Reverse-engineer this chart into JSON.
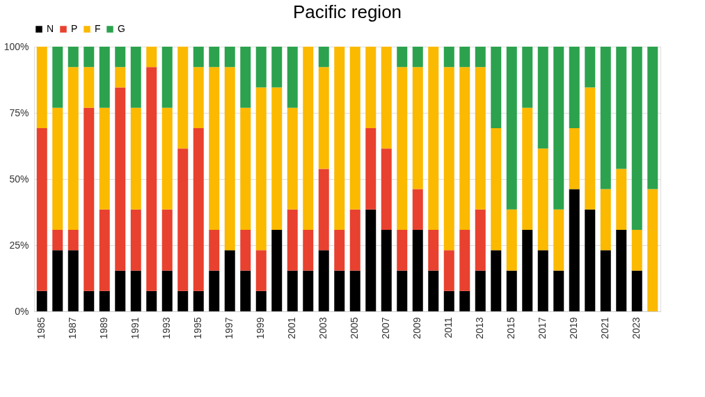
{
  "chart_data": {
    "type": "bar",
    "title": "Pacific region",
    "stacked": true,
    "categories": [
      "1985",
      null,
      "1987",
      null,
      "1989",
      null,
      "1991",
      null,
      "1993",
      null,
      "1995",
      null,
      "1997",
      null,
      "1999",
      null,
      "2001",
      null,
      "2003",
      null,
      "2005",
      null,
      "2007",
      null,
      "2009",
      null,
      "2011",
      null,
      "2013",
      null,
      "2015",
      null,
      "2017",
      null,
      "2019",
      null,
      "2021",
      null,
      "2023",
      null
    ],
    "series": [
      {
        "name": "N",
        "color": "#000000",
        "values": [
          7.7,
          23.1,
          23.1,
          7.7,
          7.7,
          15.4,
          15.4,
          7.7,
          15.4,
          7.7,
          7.7,
          15.4,
          23.1,
          15.4,
          7.7,
          30.8,
          15.4,
          15.4,
          23.1,
          15.4,
          15.4,
          38.5,
          30.8,
          15.4,
          30.8,
          15.4,
          7.7,
          7.7,
          15.4,
          23.1,
          15.4,
          30.8,
          23.1,
          15.4,
          46.2,
          38.5,
          23.1,
          30.8,
          15.4,
          0
        ]
      },
      {
        "name": "P",
        "color": "#e8412f",
        "values": [
          61.5,
          7.7,
          7.7,
          69.2,
          30.8,
          69.2,
          23.1,
          84.6,
          23.1,
          53.8,
          61.5,
          15.4,
          0,
          15.4,
          15.4,
          0,
          23.1,
          15.4,
          30.7,
          15.4,
          23.1,
          30.7,
          30.7,
          15.4,
          15.4,
          15.4,
          15.4,
          23.1,
          23.1,
          0,
          0,
          0,
          0,
          0,
          0,
          0,
          0,
          0,
          0,
          0
        ]
      },
      {
        "name": "F",
        "color": "#fbb900",
        "values": [
          30.8,
          46.1,
          61.5,
          15.4,
          38.4,
          7.7,
          38.4,
          7.7,
          38.4,
          38.5,
          23.1,
          61.5,
          69.2,
          46.1,
          61.5,
          53.8,
          38.4,
          69.2,
          38.5,
          69.2,
          61.5,
          30.8,
          38.5,
          61.5,
          46.1,
          69.2,
          69.2,
          61.5,
          53.8,
          46.1,
          23.1,
          46.1,
          38.4,
          23.1,
          23.0,
          46.1,
          23.1,
          23.0,
          15.4,
          46.2
        ]
      },
      {
        "name": "G",
        "color": "#2ca24e",
        "values": [
          0,
          23.1,
          7.7,
          7.7,
          23.1,
          7.7,
          23.1,
          0,
          23.1,
          0,
          7.7,
          7.7,
          7.7,
          23.1,
          15.4,
          15.4,
          23.1,
          0,
          7.7,
          0,
          0,
          0,
          0,
          7.7,
          7.7,
          0,
          7.7,
          7.7,
          7.7,
          30.8,
          61.5,
          23.1,
          38.5,
          61.5,
          30.8,
          15.4,
          53.8,
          46.2,
          69.2,
          53.8
        ]
      }
    ],
    "ylim": [
      0,
      100
    ],
    "yticks": [
      {
        "value": 0,
        "label": "0%"
      },
      {
        "value": 25,
        "label": "25%"
      },
      {
        "value": 50,
        "label": "50%"
      },
      {
        "value": 75,
        "label": "75%"
      },
      {
        "value": 100,
        "label": "100%"
      }
    ],
    "grid": "y",
    "legend": "top"
  }
}
